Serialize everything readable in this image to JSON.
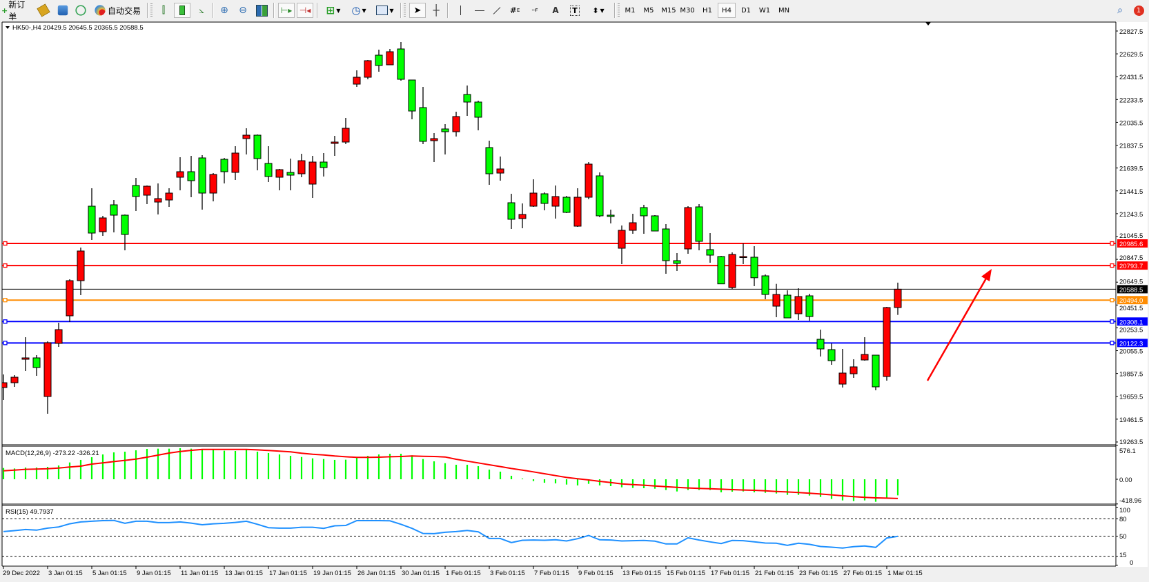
{
  "toolbar": {
    "new_order": "新订单",
    "auto_trading": "自动交易",
    "fibo_channel_sub": "E",
    "fibo_sub": "F",
    "text_tool": "A",
    "label_tool": "T",
    "timeframes": [
      "M1",
      "M5",
      "M15",
      "M30",
      "H1",
      "H4",
      "D1",
      "W1",
      "MN"
    ],
    "active_timeframe": "H4",
    "notification_count": "1"
  },
  "chart": {
    "header": "HK50-,H4  20429.5 20645.5 20365.5 20588.5",
    "colors": {
      "up_candle": "#ff0000",
      "down_candle": "#00ff00",
      "outline": "#000000",
      "arrow": "#ff0000"
    },
    "price_axis": [
      "22827.5",
      "22629.5",
      "22431.5",
      "22233.5",
      "22035.5",
      "21837.5",
      "21639.5",
      "21441.5",
      "21243.5",
      "21045.5",
      "20847.5",
      "20649.5",
      "20451.5",
      "20253.5",
      "20055.5",
      "19857.5",
      "19659.5",
      "19461.5",
      "19263.5"
    ],
    "current_price": {
      "price": 20588.5,
      "label": "20588.5",
      "color": "#000000"
    },
    "levels": [
      {
        "price": 20985.6,
        "label": "20985.6",
        "color": "#ff0000"
      },
      {
        "price": 20793.7,
        "label": "20793.7",
        "color": "#ff0000"
      },
      {
        "price": 20494.0,
        "label": "20494.0",
        "color": "#ff8c00"
      },
      {
        "price": 20308.1,
        "label": "20308.1",
        "color": "#0000ff"
      },
      {
        "price": 20122.3,
        "label": "20122.3",
        "color": "#0000ff"
      }
    ],
    "time_axis": [
      "29 Dec 2022",
      "3 Jan 01:15",
      "5 Jan 01:15",
      "9 Jan 01:15",
      "11 Jan 01:15",
      "13 Jan 01:15",
      "17 Jan 01:15",
      "19 Jan 01:15",
      "26 Jan 01:15",
      "30 Jan 01:15",
      "1 Feb 01:15",
      "3 Feb 01:15",
      "7 Feb 01:15",
      "9 Feb 01:15",
      "13 Feb 01:15",
      "15 Feb 01:15",
      "17 Feb 01:15",
      "21 Feb 01:15",
      "23 Feb 01:15",
      "27 Feb 01:15",
      "1 Mar 01:15"
    ]
  },
  "macd": {
    "label": "MACD(12,26,9) -273.22 -326.21",
    "axis": [
      "576.1",
      "0.00",
      "-418.96"
    ],
    "histogram_color": "#00ff00",
    "signal_color": "#ff0000"
  },
  "rsi": {
    "label": "RSI(15) 49.7937",
    "axis": [
      "100",
      "80",
      "50",
      "15",
      "0"
    ],
    "line_color": "#1e90ff"
  },
  "chart_data": {
    "type": "candlestick",
    "symbol": "HK50-",
    "timeframe": "H4",
    "ylim": [
      19239.4,
      22893.0
    ],
    "ohlc": [
      [
        19735.7,
        19849.4,
        19628.1,
        19777.6
      ],
      [
        19777.6,
        19843.4,
        19741.7,
        19825.4
      ],
      [
        19980.9,
        20172.3,
        19879.3,
        19992.9
      ],
      [
        19992.9,
        20016.8,
        19837.4,
        19909.2
      ],
      [
        19658.0,
        20136.4,
        19508.5,
        20124.4
      ],
      [
        20118.5,
        20297.9,
        20088.6,
        20238.1
      ],
      [
        20357.7,
        20674.6,
        20303.8,
        20662.6
      ],
      [
        20662.6,
        20949.7,
        20537.1,
        20919.8
      ],
      [
        21308.5,
        21464.0,
        21015.5,
        21075.3
      ],
      [
        21087.2,
        21224.8,
        21051.4,
        21206.8
      ],
      [
        21320.4,
        21362.3,
        21081.2,
        21230.7
      ],
      [
        21230.7,
        21236.7,
        20925.8,
        21063.3
      ],
      [
        21487.9,
        21553.7,
        21266.6,
        21392.2
      ],
      [
        21404.1,
        21487.9,
        21326.4,
        21481.9
      ],
      [
        21344.3,
        21505.8,
        21236.7,
        21374.2
      ],
      [
        21362.3,
        21464.0,
        21302.5,
        21422.1
      ],
      [
        21559.6,
        21733.1,
        21446.0,
        21607.5
      ],
      [
        21607.5,
        21745.0,
        21386.2,
        21529.7
      ],
      [
        21727.1,
        21751.0,
        21278.6,
        21422.1
      ],
      [
        21422.1,
        21595.5,
        21350.3,
        21583.6
      ],
      [
        21715.1,
        21727.1,
        21505.8,
        21607.5
      ],
      [
        21601.5,
        21828.8,
        21535.7,
        21769.0
      ],
      [
        21894.5,
        21984.2,
        21757.0,
        21924.4
      ],
      [
        21924.4,
        21930.4,
        21619.4,
        21721.1
      ],
      [
        21679.3,
        21828.8,
        21517.8,
        21565.6
      ],
      [
        21559.6,
        21631.4,
        21446.0,
        21625.4
      ],
      [
        21601.5,
        21721.1,
        21446.0,
        21577.6
      ],
      [
        21589.5,
        21763.0,
        21559.6,
        21703.1
      ],
      [
        21499.9,
        21745.0,
        21380.2,
        21691.2
      ],
      [
        21691.2,
        21769.0,
        21565.6,
        21643.4
      ],
      [
        21852.7,
        21918.4,
        21745.0,
        21864.6
      ],
      [
        21864.6,
        22073.9,
        21846.7,
        21984.2
      ],
      [
        22366.9,
        22486.5,
        22343.0,
        22426.7
      ],
      [
        22426.7,
        22576.2,
        22408.8,
        22570.3
      ],
      [
        22618.1,
        22666.0,
        22474.6,
        22528.4
      ],
      [
        22534.4,
        22672.0,
        22534.4,
        22648.0
      ],
      [
        22672.0,
        22731.7,
        22396.8,
        22408.8
      ],
      [
        22402.8,
        22402.8,
        22062.0,
        22133.7
      ],
      [
        22163.6,
        22343.0,
        21846.7,
        21870.6
      ],
      [
        21876.6,
        21942.4,
        21691.2,
        21894.5
      ],
      [
        21978.2,
        22020.1,
        21757.0,
        21954.3
      ],
      [
        21954.3,
        22127.7,
        21912.5,
        22085.9
      ],
      [
        22277.2,
        22355.0,
        22091.9,
        22211.5
      ],
      [
        22211.5,
        22223.4,
        21966.3,
        22079.9
      ],
      [
        21816.8,
        21876.6,
        21493.9,
        21589.5
      ],
      [
        21595.5,
        21739.0,
        21529.7,
        21631.4
      ],
      [
        21338.4,
        21416.1,
        21111.1,
        21194.9
      ],
      [
        21200.9,
        21332.4,
        21117.1,
        21236.7
      ],
      [
        21308.5,
        21541.7,
        21302.5,
        21422.1
      ],
      [
        21416.1,
        21428.1,
        21272.6,
        21332.4
      ],
      [
        21308.5,
        21487.9,
        21200.9,
        21392.2
      ],
      [
        21386.2,
        21398.2,
        21248.7,
        21254.7
      ],
      [
        21135.1,
        21464.0,
        21129.1,
        21386.2
      ],
      [
        21386.2,
        21691.2,
        21368.3,
        21673.3
      ],
      [
        21571.6,
        21601.5,
        21212.8,
        21224.8
      ],
      [
        21230.7,
        21278.6,
        21159.0,
        21218.8
      ],
      [
        20943.7,
        21141.0,
        20806.2,
        21099.2
      ],
      [
        21099.2,
        21242.7,
        21069.3,
        21165.0
      ],
      [
        21296.5,
        21320.4,
        21069.3,
        21224.8
      ],
      [
        21224.8,
        21230.7,
        21093.2,
        21093.2
      ],
      [
        21111.1,
        21153.0,
        20722.5,
        20836.1
      ],
      [
        20836.1,
        20901.9,
        20746.4,
        20812.1
      ],
      [
        20937.8,
        21308.5,
        20895.9,
        21296.5
      ],
      [
        21302.5,
        21326.4,
        20925.8,
        21003.5
      ],
      [
        20931.8,
        21075.3,
        20818.1,
        20884.0
      ],
      [
        20872.0,
        20878.0,
        20634.7,
        20634.7
      ],
      [
        20602.8,
        20907.8,
        20590.9,
        20889.9
      ],
      [
        20872.0,
        20985.6,
        20806.2,
        20872.0
      ],
      [
        20866.0,
        20961.6,
        20614.8,
        20687.8
      ],
      [
        20704.5,
        20716.5,
        20501.1,
        20543.0
      ],
      [
        20441.4,
        20634.7,
        20345.7,
        20543.0
      ],
      [
        20537.1,
        20579.0,
        20339.7,
        20339.7
      ],
      [
        20375.6,
        20596.9,
        20321.8,
        20525.1
      ],
      [
        20531.1,
        20549.0,
        20315.8,
        20351.7
      ],
      [
        20154.3,
        20238.1,
        20004.9,
        20070.6
      ],
      [
        20064.6,
        20118.5,
        19933.1,
        19968.9
      ],
      [
        19765.6,
        20070.6,
        19735.7,
        19861.3
      ],
      [
        19855.3,
        19980.9,
        19819.5,
        19915.1
      ],
      [
        19974.9,
        20172.3,
        19968.9,
        20022.8
      ],
      [
        20016.8,
        20016.8,
        19711.8,
        19741.7
      ],
      [
        19831.4,
        20435.4,
        19795.5,
        20429.5
      ],
      [
        20429.5,
        20645.5,
        20365.5,
        20588.5
      ]
    ],
    "macd_histogram": [
      191,
      183,
      199,
      199,
      211,
      234,
      285,
      328,
      374,
      421,
      456,
      468,
      491,
      515,
      519,
      519,
      527,
      519,
      499,
      499,
      484,
      480,
      499,
      468,
      445,
      421,
      398,
      378,
      355,
      343,
      328,
      332,
      363,
      398,
      421,
      433,
      433,
      406,
      343,
      304,
      273,
      246,
      246,
      222,
      164,
      129,
      59,
      12,
      -31,
      -59,
      -70,
      -90,
      -105,
      -78,
      -105,
      -117,
      -137,
      -148,
      -152,
      -160,
      -183,
      -207,
      -183,
      -183,
      -183,
      -222,
      -211,
      -207,
      -222,
      -230,
      -242,
      -265,
      -265,
      -277,
      -300,
      -335,
      -359,
      -371,
      -359,
      -382,
      -320,
      -273.22
    ],
    "macd_signal": [
      144,
      156,
      168,
      172,
      179,
      191,
      207,
      222,
      257,
      277,
      300,
      320,
      343,
      374,
      410,
      445,
      470,
      490,
      507,
      507,
      507,
      507,
      507,
      499,
      488,
      476,
      464,
      441,
      425,
      413,
      394,
      382,
      371,
      371,
      374,
      382,
      386,
      394,
      390,
      386,
      378,
      339,
      308,
      277,
      246,
      215,
      183,
      156,
      125,
      94,
      62,
      31,
      8,
      -12,
      -35,
      -55,
      -78,
      -90,
      -101,
      -113,
      -125,
      -137,
      -148,
      -156,
      -160,
      -168,
      -176,
      -183,
      -187,
      -195,
      -207,
      -215,
      -226,
      -238,
      -250,
      -265,
      -281,
      -296,
      -308,
      -316,
      -320,
      -326.21
    ],
    "macd_ylim": [
      -418.96,
      576.1
    ],
    "rsi": [
      57.9,
      59.5,
      61.4,
      60.3,
      63.8,
      65.8,
      71.3,
      74.5,
      75.7,
      76.8,
      77.2,
      72.1,
      75.7,
      75.7,
      73.3,
      73.3,
      74.5,
      72.5,
      69.7,
      71.3,
      72.1,
      73.7,
      75.7,
      70.5,
      64.6,
      63.8,
      63.8,
      65.4,
      65.4,
      63.4,
      67.8,
      68.5,
      76.8,
      76.8,
      76.8,
      76.4,
      70.5,
      63.4,
      54.7,
      54.3,
      56.7,
      57.9,
      59.9,
      57.5,
      46.0,
      46.0,
      38.9,
      42.9,
      43.3,
      42.9,
      43.7,
      41.7,
      45.6,
      51.2,
      43.7,
      43.3,
      41.7,
      42.1,
      42.5,
      41.3,
      36.5,
      36.5,
      47.2,
      43.3,
      40.1,
      37.3,
      42.5,
      42.1,
      40.1,
      38.1,
      37.7,
      34.2,
      37.7,
      35.8,
      32.2,
      31.0,
      29.4,
      31.8,
      33.0,
      30.6,
      46.8,
      49.7937
    ],
    "rsi_levels": [
      80,
      50,
      15
    ],
    "rsi_ylim": [
      0,
      100
    ]
  }
}
